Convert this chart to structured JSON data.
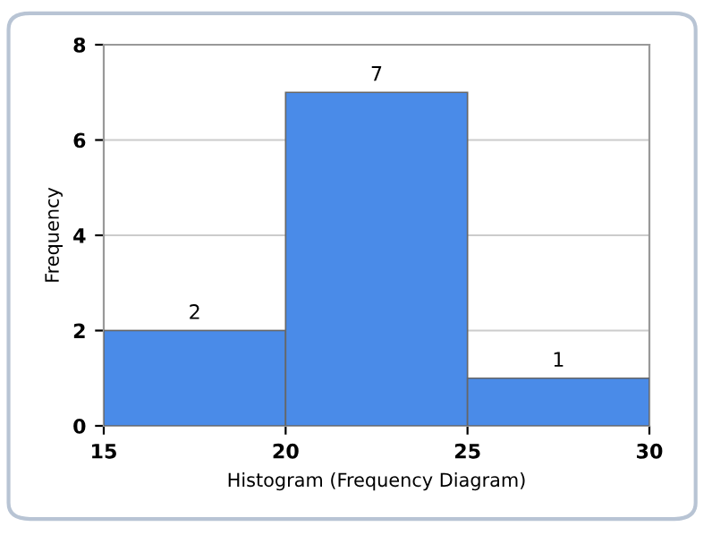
{
  "chart_data": {
    "type": "histogram",
    "xlabel": "Histogram (Frequency Diagram)",
    "ylabel": "Frequency",
    "bins": [
      15,
      20,
      25,
      30
    ],
    "values": [
      2,
      7,
      1
    ],
    "color": "#4a8be8",
    "xlim": [
      15,
      30
    ],
    "xticks": [
      15,
      20,
      25,
      30
    ],
    "ylim": [
      0,
      8
    ],
    "yticks": [
      0,
      2,
      4,
      6,
      8
    ],
    "grid": "y",
    "data_labels": true
  }
}
